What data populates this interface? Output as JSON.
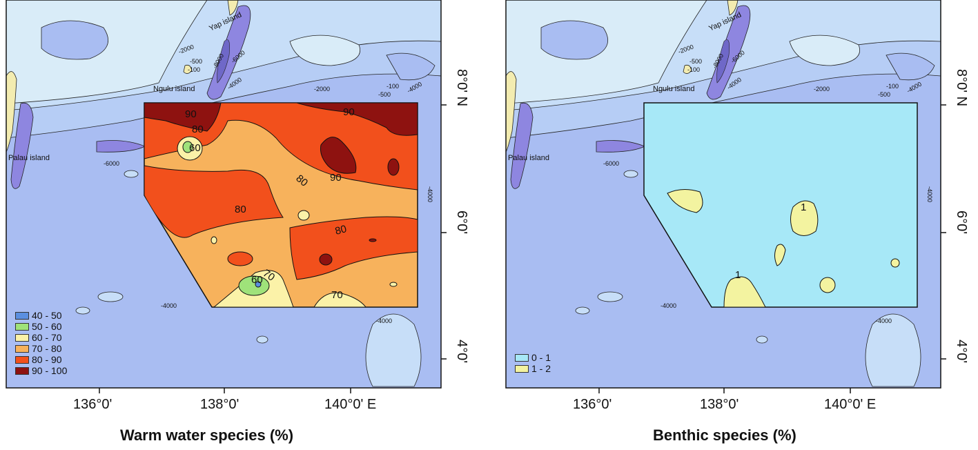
{
  "panels": [
    {
      "caption": "Warm water species (%)",
      "x_ticks": [
        "136°0'",
        "138°0'",
        "140°0' E"
      ],
      "y_ticks": [
        "8°0' N",
        "6°0'",
        "4°0'"
      ],
      "legend": [
        {
          "label": "40 - 50",
          "color": "#5b8fe0"
        },
        {
          "label": "50 - 60",
          "color": "#9fe27a"
        },
        {
          "label": "60 - 70",
          "color": "#fbf2a8"
        },
        {
          "label": "70 - 80",
          "color": "#f7b25c"
        },
        {
          "label": "80 - 90",
          "color": "#f2501c"
        },
        {
          "label": "90 - 100",
          "color": "#8e1210"
        }
      ],
      "contour_labels": [
        "90",
        "80",
        "60",
        "90",
        "80",
        "90",
        "80",
        "80",
        "70",
        "60",
        "70"
      ]
    },
    {
      "caption": "Benthic species (%)",
      "x_ticks": [
        "136°0'",
        "138°0'",
        "140°0' E"
      ],
      "y_ticks": [
        "8°0' N",
        "6°0'",
        "4°0'"
      ],
      "legend": [
        {
          "label": "0 - 1",
          "color": "#a7e8f7"
        },
        {
          "label": "1 - 2",
          "color": "#f3f3a0"
        }
      ],
      "contour_labels": [
        "1",
        "1"
      ]
    }
  ],
  "place_names": [
    "Yap island",
    "Ngulu island",
    "Palau island"
  ],
  "depth_labels": [
    "-2000",
    "-500",
    "-100",
    "-8000",
    "-6000",
    "-4000",
    "-2000",
    "-100",
    "-500",
    "-4000",
    "-6000",
    "-4000",
    "-4000",
    "-4000"
  ],
  "colors": {
    "ocean_deep": "#a9bdf2",
    "ocean_mid": "#b6cdf5",
    "ocean_shallow": "#c7def8",
    "shelf": "#d9ecf8",
    "trench": "#8e86e0",
    "land": "#f3ecb0"
  }
}
